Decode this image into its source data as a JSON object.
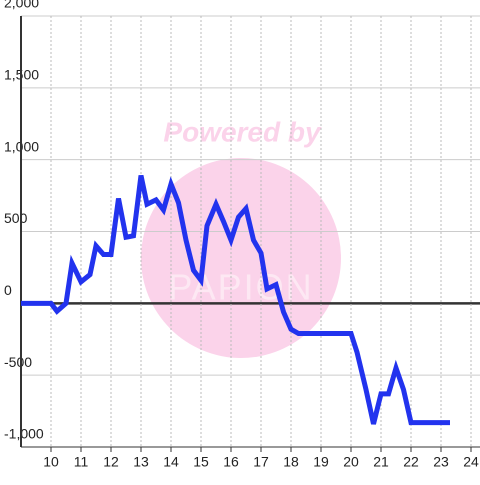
{
  "chart_data": {
    "type": "line",
    "watermark": {
      "title": "Powered by",
      "brand": "PAPION"
    },
    "x": [
      9,
      10,
      10.2,
      10.5,
      10.7,
      11,
      11.3,
      11.5,
      11.75,
      12,
      12.25,
      12.5,
      12.75,
      13,
      13.2,
      13.5,
      13.75,
      14,
      14.25,
      14.5,
      14.75,
      15,
      15.2,
      15.5,
      15.75,
      16,
      16.25,
      16.5,
      16.75,
      17,
      17.2,
      17.5,
      17.75,
      18,
      18.25,
      20,
      20.2,
      20.5,
      20.75,
      21,
      21.25,
      21.5,
      21.75,
      22,
      23.3
    ],
    "series": [
      {
        "color": "#2233ee",
        "values": [
          0,
          0,
          -55,
          0,
          280,
          150,
          200,
          400,
          340,
          340,
          730,
          460,
          470,
          890,
          690,
          720,
          650,
          830,
          700,
          440,
          230,
          160,
          540,
          690,
          570,
          440,
          600,
          660,
          440,
          350,
          100,
          130,
          -60,
          -180,
          -210,
          -210,
          -340,
          -600,
          -840,
          -630,
          -630,
          -450,
          -600,
          -830,
          -830
        ]
      }
    ],
    "xlim": [
      9,
      24.3
    ],
    "xticks": [
      10,
      11,
      12,
      13,
      14,
      15,
      16,
      17,
      18,
      19,
      20,
      21,
      22,
      23,
      24
    ],
    "ylim": [
      -1000,
      2000
    ],
    "yticks": [
      {
        "value": -1000,
        "label": "-1,000"
      },
      -500,
      0,
      500,
      {
        "value": 1000,
        "label": "1,000"
      },
      {
        "value": 1500,
        "label": "1,500"
      },
      {
        "value": 2000,
        "label": "2,000"
      }
    ],
    "grid": true
  }
}
